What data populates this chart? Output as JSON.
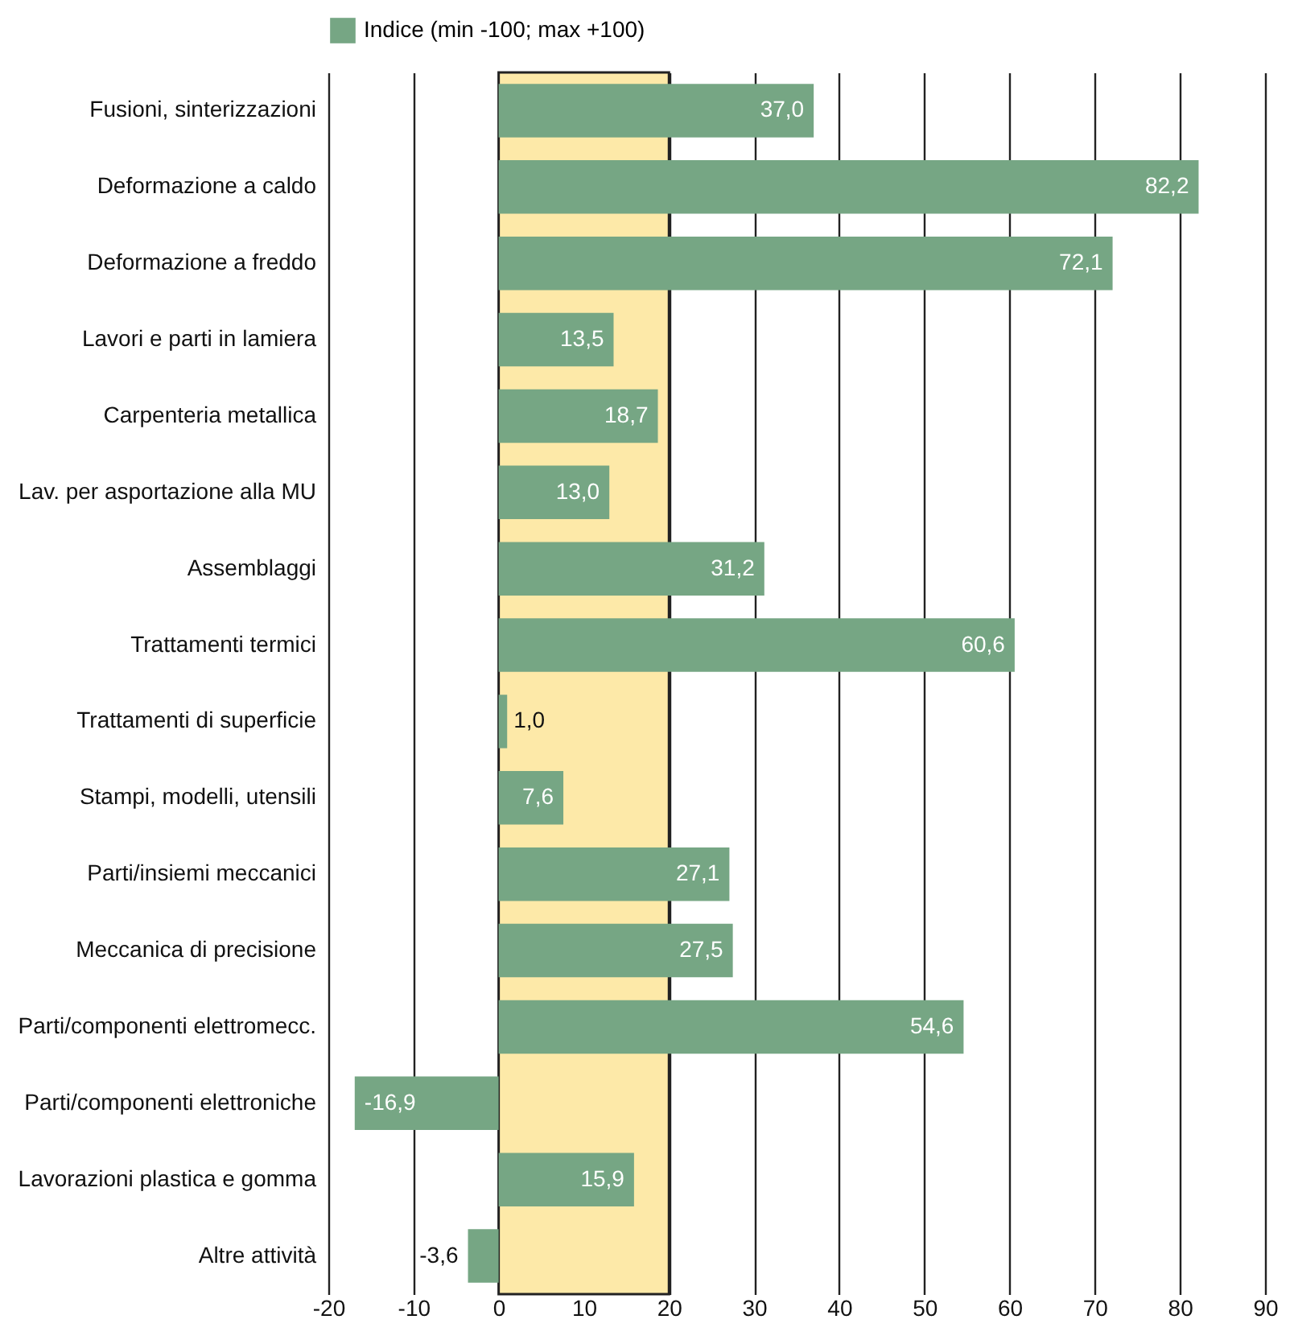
{
  "chart_data": {
    "type": "bar",
    "orientation": "horizontal",
    "categories": [
      "Fusioni, sinterizzazioni",
      "Deformazione a caldo",
      "Deformazione a freddo",
      "Lavori e parti in lamiera",
      "Carpenteria metallica",
      "Lav. per asportazione alla MU",
      "Assemblaggi",
      "Trattamenti termici",
      "Trattamenti di superficie",
      "Stampi, modelli, utensili",
      "Parti/insiemi meccanici",
      "Meccanica di precisione",
      "Parti/componenti elettromecc.",
      "Parti/componenti elettroniche",
      "Lavorazioni plastica e gomma",
      "Altre attività"
    ],
    "series": [
      {
        "name": "Indice (min -100; max +100)",
        "color": "#76a684",
        "values": [
          37.0,
          82.2,
          72.1,
          13.5,
          18.7,
          13.0,
          31.2,
          60.6,
          1.0,
          7.6,
          27.1,
          27.5,
          54.6,
          -16.9,
          15.9,
          -3.6
        ],
        "value_labels": [
          "37,0",
          "82,2",
          "72,1",
          "13,5",
          "18,7",
          "13,0",
          "31,2",
          "60,6",
          "1,0",
          "7,6",
          "27,1",
          "27,5",
          "54,6",
          "-16,9",
          "15,9",
          "-3,6"
        ]
      }
    ],
    "xlim": [
      -20,
      90
    ],
    "xticks": [
      -20,
      -10,
      0,
      10,
      20,
      30,
      40,
      50,
      60,
      70,
      80,
      90
    ],
    "bands": [
      {
        "axis": "x",
        "from": 0,
        "to": 20,
        "color": "#fde9a8"
      }
    ],
    "grid": "x",
    "legend": "top"
  }
}
